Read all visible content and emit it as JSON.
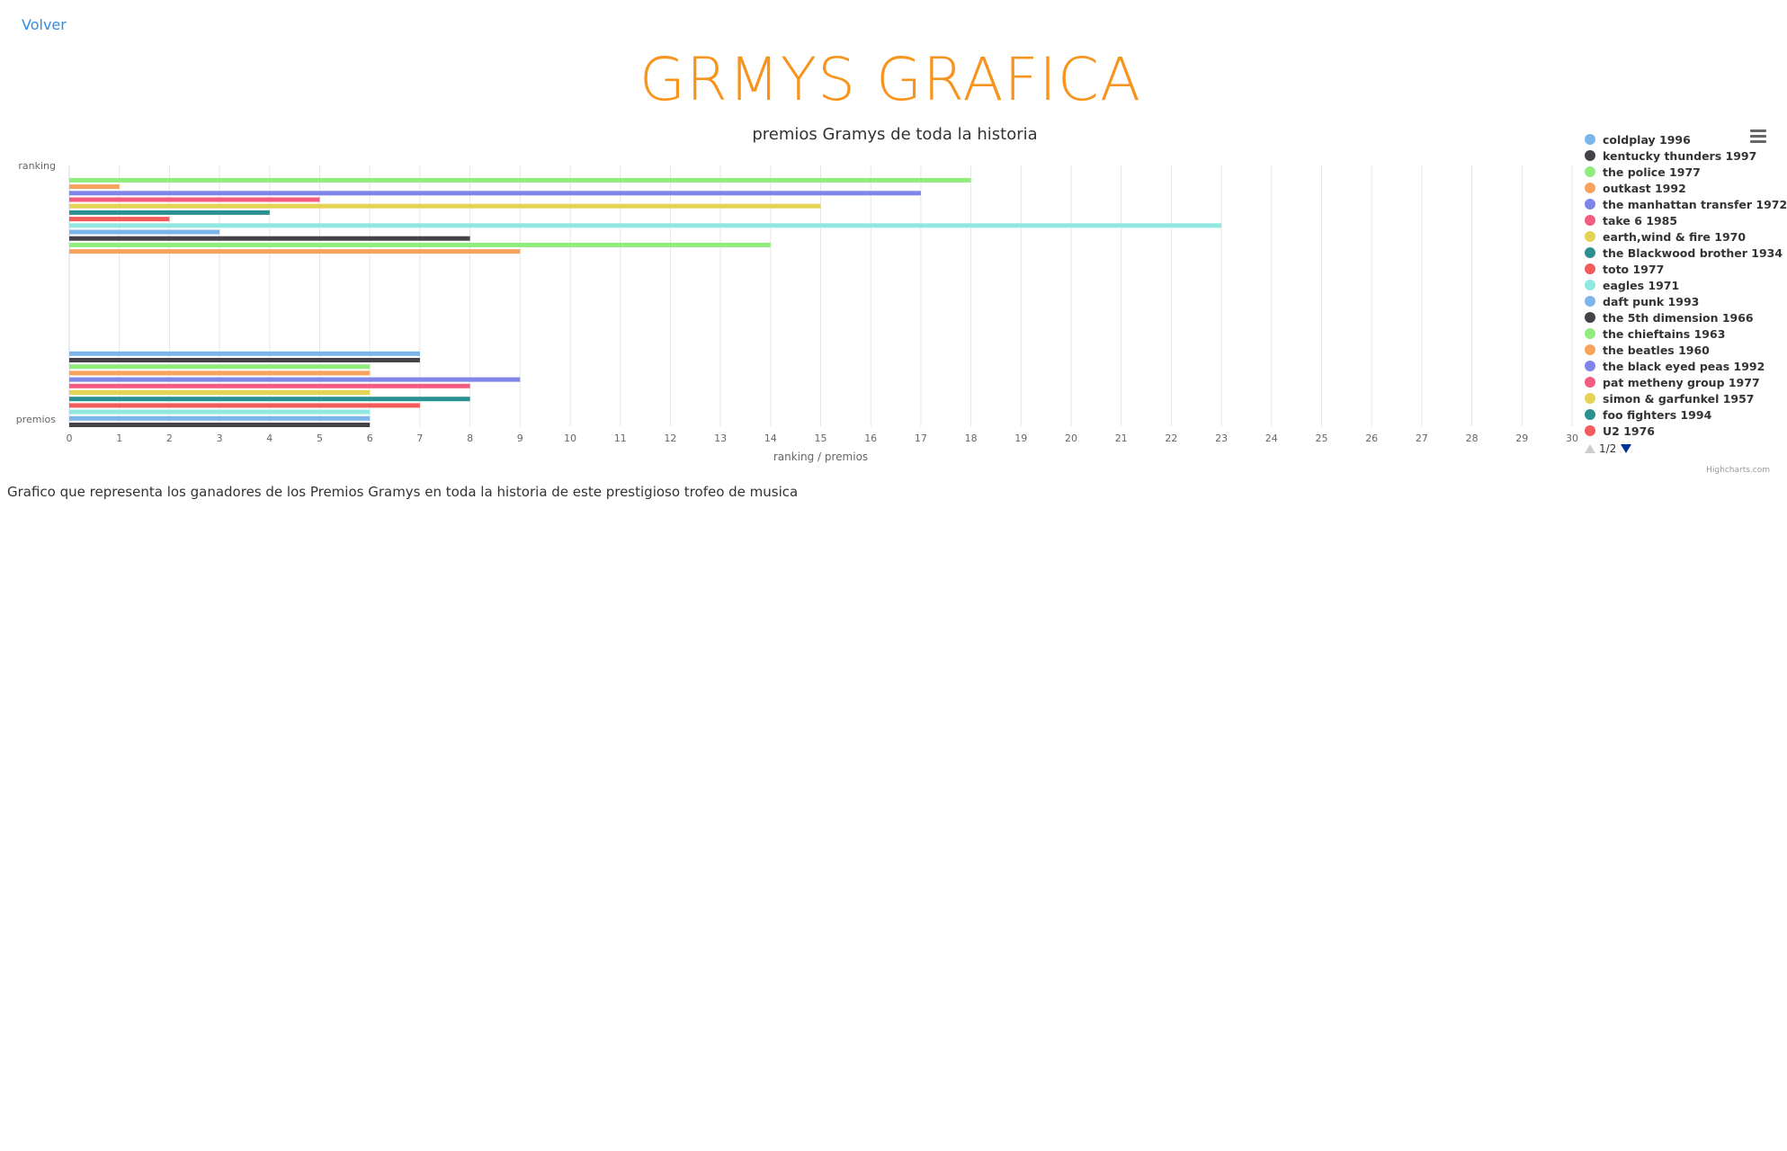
{
  "nav": {
    "back_label": "Volver"
  },
  "page": {
    "title": "GRMYS GRAFICA",
    "caption": "Grafico que representa los ganadores de los Premios Gramys en toda la historia de este prestigioso trofeo de musica",
    "title_color": "#f7941d",
    "link_color": "#2f8de4"
  },
  "chart_data": {
    "type": "bar",
    "orientation": "horizontal",
    "title": "premios Gramys de toda la historia",
    "xlabel": "ranking / premios",
    "categories": [
      "ranking",
      "premios"
    ],
    "xlim": [
      0,
      30
    ],
    "ticks": [
      "0",
      "1",
      "2",
      "3",
      "4",
      "5",
      "6",
      "7",
      "8",
      "9",
      "10",
      "11",
      "12",
      "13",
      "14",
      "15",
      "16",
      "17",
      "18",
      "19",
      "20",
      "21",
      "22",
      "23",
      "24",
      "25",
      "26",
      "27",
      "28",
      "29",
      "30"
    ],
    "grid": true,
    "legend_position": "right",
    "credits": "Highcharts.com",
    "legend_page": "1/2",
    "series": [
      {
        "name": "coldplay 1996",
        "color": "#7cb5ec",
        "values": [
          null,
          7
        ]
      },
      {
        "name": "kentucky thunders 1997",
        "color": "#434348",
        "values": [
          null,
          7
        ]
      },
      {
        "name": "the police 1977",
        "color": "#90ed7d",
        "values": [
          18,
          6
        ]
      },
      {
        "name": "outkast 1992",
        "color": "#f7a35c",
        "values": [
          1,
          6
        ]
      },
      {
        "name": "the manhattan transfer 1972",
        "color": "#8085e9",
        "values": [
          17,
          9
        ]
      },
      {
        "name": "take 6 1985",
        "color": "#f15c80",
        "values": [
          5,
          8
        ]
      },
      {
        "name": "earth,wind & fire 1970",
        "color": "#e4d354",
        "values": [
          15,
          6
        ]
      },
      {
        "name": "the Blackwood brother 1934",
        "color": "#2b908f",
        "values": [
          4,
          8
        ]
      },
      {
        "name": "toto 1977",
        "color": "#f45b5b",
        "values": [
          2,
          7
        ]
      },
      {
        "name": "eagles 1971",
        "color": "#91e8e1",
        "values": [
          23,
          6
        ]
      },
      {
        "name": "daft punk 1993",
        "color": "#7cb5ec",
        "values": [
          3,
          6
        ]
      },
      {
        "name": "the 5th dimension 1966",
        "color": "#434348",
        "values": [
          8,
          6
        ]
      },
      {
        "name": "the chieftains 1963",
        "color": "#90ed7d",
        "values": [
          14,
          null
        ]
      },
      {
        "name": "the beatles 1960",
        "color": "#f7a35c",
        "values": [
          9,
          null
        ]
      },
      {
        "name": "the black eyed peas 1992",
        "color": "#8085e9",
        "values": [
          null,
          null
        ]
      },
      {
        "name": "pat metheny group 1977",
        "color": "#f15c80",
        "values": [
          null,
          null
        ]
      },
      {
        "name": "simon & garfunkel 1957",
        "color": "#e4d354",
        "values": [
          null,
          null
        ]
      },
      {
        "name": "foo fighters 1994",
        "color": "#2b908f",
        "values": [
          null,
          null
        ]
      },
      {
        "name": "U2 1976",
        "color": "#f45b5b",
        "values": [
          null,
          null
        ]
      }
    ]
  }
}
